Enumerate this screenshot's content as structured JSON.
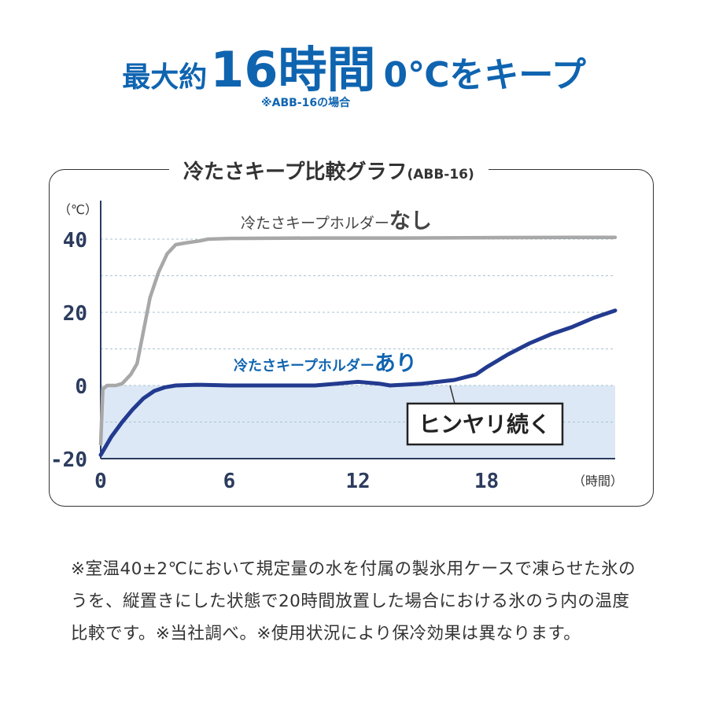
{
  "headline": {
    "prefix": "最大約",
    "number": "16時間",
    "suffix": "0℃をキープ",
    "note": "※ABB-16の場合"
  },
  "colors": {
    "accent": "#0f64b0",
    "line_without": "#a8a8a8",
    "line_with": "#223a8f",
    "cold_zone": "#dce8f5",
    "axis": "#2c3c5e"
  },
  "chart_data": {
    "type": "line",
    "title": "冷たさキープ比較グラフ",
    "title_suffix": "(ABB-16)",
    "xlabel": "（時間）",
    "ylabel": "（℃）",
    "xlim": [
      0,
      24
    ],
    "ylim": [
      -20,
      50
    ],
    "x_ticks": [
      0,
      6,
      12,
      18
    ],
    "y_ticks": [
      40,
      20,
      0,
      -20
    ],
    "grid_values": [
      40,
      30,
      20,
      10,
      0,
      -10
    ],
    "grid": true,
    "highlight_band": [
      -20,
      0
    ],
    "series": [
      {
        "name": "冷たさキープホルダーなし",
        "label_main": "冷たさキープホルダー",
        "label_emph": "なし",
        "x": [
          0,
          0.1,
          0.3,
          0.7,
          1.0,
          1.4,
          1.7,
          2.0,
          2.3,
          2.7,
          3.1,
          3.5,
          4.0,
          4.6,
          5.0,
          6,
          10,
          14,
          18,
          22,
          24
        ],
        "y": [
          -16,
          -1,
          0,
          0,
          0.5,
          3,
          6,
          15,
          24,
          31,
          36,
          38.5,
          39,
          39.5,
          40,
          40.2,
          40.3,
          40.3,
          40.4,
          40.5,
          40.5
        ]
      },
      {
        "name": "冷たさキープホルダーあり",
        "label_main": "冷たさキープホルダー",
        "label_emph": "あり",
        "x": [
          0,
          0.5,
          1.0,
          1.5,
          2.0,
          2.5,
          3.0,
          3.5,
          4.5,
          6,
          8,
          10,
          11,
          12,
          13,
          13.5,
          15,
          16.5,
          17.5,
          18,
          19,
          20,
          21,
          22,
          23,
          24
        ],
        "y": [
          -19,
          -14,
          -10,
          -6.5,
          -3.5,
          -1.5,
          -0.5,
          0,
          0.2,
          0,
          0,
          0,
          0.5,
          1,
          0.5,
          0,
          0.5,
          1.5,
          3,
          5,
          8.5,
          11.5,
          14,
          16,
          18.5,
          20.5
        ]
      }
    ],
    "annotation": "ヒンヤリ続く"
  },
  "footnote": "※室温40±2℃において規定量の水を付属の製氷用ケースで凍らせた氷のうを、縦置きにした状態で20時間放置した場合における氷のう内の温度比較です。※当社調べ。※使用状況により保冷効果は異なります。"
}
